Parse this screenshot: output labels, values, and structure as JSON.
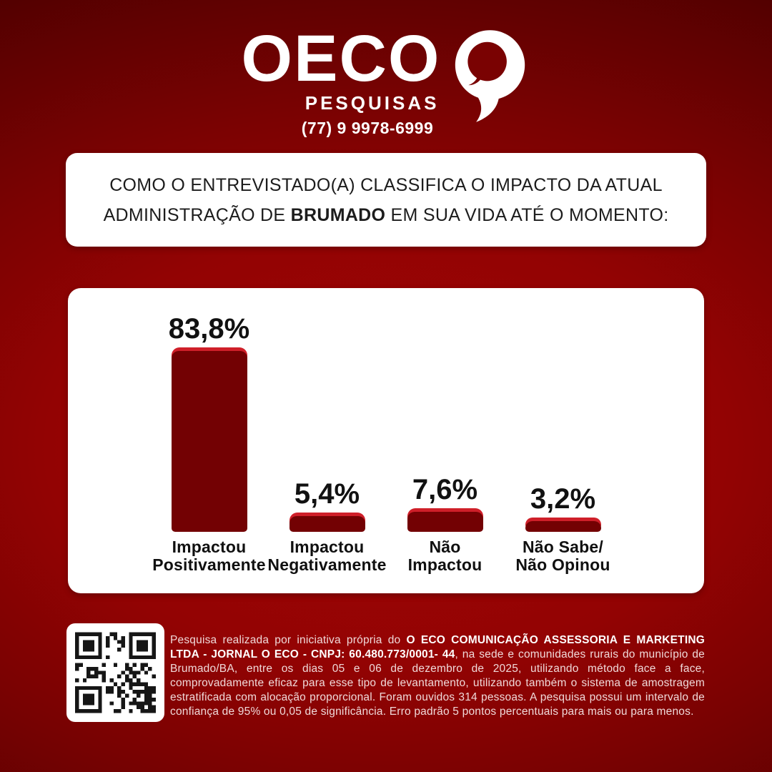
{
  "brand": {
    "name": "OECO",
    "tagline": "PESQUISAS",
    "phone": "(77) 9 9978-6999"
  },
  "question": {
    "line1": "COMO O ENTREVISTADO(A) CLASSIFICA O IMPACTO DA ATUAL",
    "line2_pre": "ADMINISTRAÇÃO DE ",
    "line2_bold": "BRUMADO",
    "line2_post": " EM SUA VIDA ATÉ O MOMENTO:"
  },
  "chart_data": {
    "type": "bar",
    "categories": [
      "Impactou Positivamente",
      "Impactou Negativamente",
      "Não Impactou",
      "Não Sabe/ Não Opinou"
    ],
    "values": [
      83.8,
      5.4,
      7.6,
      3.2
    ],
    "ylim": [
      0,
      100
    ],
    "grid": false,
    "legend": false,
    "bar_body_color": "#730103",
    "bar_cap_color": "#cf1f29",
    "bars": [
      {
        "lines": [
          "Impactou",
          "Positivamente"
        ],
        "value_label": "83,8%"
      },
      {
        "lines": [
          "Impactou",
          "Negativamente"
        ],
        "value_label": "5,4%"
      },
      {
        "lines": [
          "Não",
          "Impactou"
        ],
        "value_label": "7,6%"
      },
      {
        "lines": [
          "Não Sabe/",
          "Não Opinou"
        ],
        "value_label": "3,2%"
      }
    ]
  },
  "footer": {
    "qr_icon": "qr-code",
    "seg1": "Pesquisa realizada por iniciativa própria do ",
    "bold": "O ECO COMUNICAÇÃO ASSESSORIA E MARKETING LTDA - JORNAL O ECO - CNPJ: 60.480.773/0001- 44",
    "seg2": ", na sede e comunidades rurais do município de Brumado/BA, entre os dias 05 e 06 de dezembro de 2025, utilizando método face a face, comprovadamente eficaz para esse tipo de levantamento, utilizando também o sistema de amostragem estratificada com alocação proporcional. Foram ouvidos 314 pessoas. A pesquisa possui um intervalo de confiança de 95% ou 0,05 de significância. Erro padrão 5 pontos percentuais para mais ou para menos."
  },
  "colors": {
    "background_center": "#a10505",
    "background_edge": "#4c0000",
    "card": "#ffffff",
    "bar_body": "#730103",
    "bar_cap": "#cf1f29",
    "text_dark": "#111111",
    "text_light": "#f0d9d9"
  }
}
